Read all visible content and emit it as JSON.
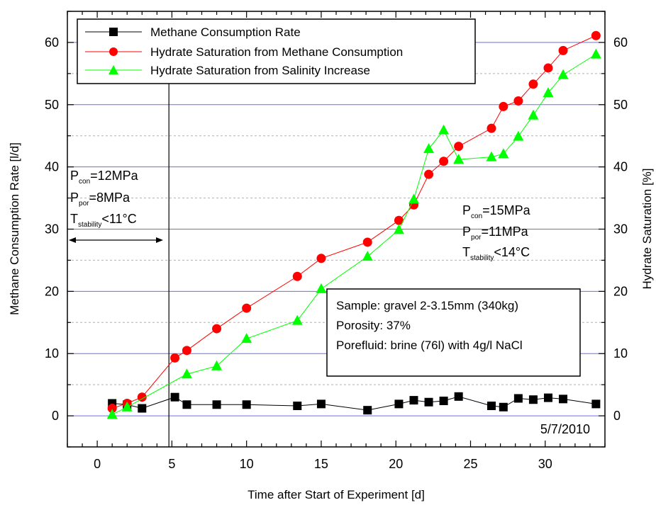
{
  "chart_data": {
    "type": "line",
    "xlabel": "Time after Start of Experiment [d]",
    "ylabel": "Methane Consumption Rate [l/d]",
    "y2label": "Hydrate Saturation [%]",
    "xlim": [
      -2,
      34
    ],
    "ylim": [
      -5,
      65
    ],
    "y2lim": [
      -5,
      65
    ],
    "x_ticks": [
      0,
      5,
      10,
      15,
      20,
      25,
      30
    ],
    "y_ticks": [
      0,
      10,
      20,
      30,
      40,
      50,
      60
    ],
    "y2_ticks": [
      0,
      10,
      20,
      30,
      40,
      50,
      60
    ],
    "grid": "horizontal",
    "legend_position": "top-left",
    "series": [
      {
        "name": "Methane Consumption Rate",
        "axis": "left",
        "color": "#000000",
        "marker": "square",
        "x": [
          1.0,
          2.0,
          3.0,
          5.2,
          6.0,
          8.0,
          10.0,
          13.4,
          15.0,
          18.1,
          20.2,
          21.2,
          22.2,
          23.2,
          24.2,
          26.4,
          27.2,
          28.2,
          29.2,
          30.2,
          31.2,
          33.4
        ],
        "values": [
          2.0,
          1.8,
          1.2,
          3.0,
          1.8,
          1.8,
          1.8,
          1.6,
          1.9,
          0.9,
          1.9,
          2.5,
          2.2,
          2.4,
          3.1,
          1.6,
          1.4,
          2.8,
          2.6,
          2.9,
          2.7,
          1.9
        ]
      },
      {
        "name": "Hydrate Saturation from Methane Consumption",
        "axis": "right",
        "color": "#ff0000",
        "marker": "circle",
        "x": [
          1.0,
          2.0,
          3.0,
          5.2,
          6.0,
          8.0,
          10.0,
          13.4,
          15.0,
          18.1,
          20.2,
          21.2,
          22.2,
          23.2,
          24.2,
          26.4,
          27.2,
          28.2,
          29.2,
          30.2,
          31.2,
          33.4
        ],
        "values": [
          1.2,
          2.0,
          3.0,
          9.3,
          10.5,
          14.0,
          17.3,
          22.4,
          25.3,
          27.9,
          31.4,
          33.9,
          38.8,
          40.9,
          43.3,
          46.2,
          49.7,
          50.6,
          53.3,
          55.9,
          58.7,
          61.1
        ]
      },
      {
        "name": "Hydrate Saturation from Salinity Increase",
        "axis": "right",
        "color": "#00ff00",
        "marker": "triangle",
        "x": [
          1.0,
          2.0,
          6.0,
          8.0,
          10.0,
          13.4,
          15.0,
          18.1,
          20.2,
          21.2,
          22.2,
          23.2,
          24.2,
          26.4,
          27.2,
          28.2,
          29.2,
          30.2,
          31.2,
          33.4
        ],
        "values": [
          0.2,
          1.4,
          6.7,
          8.0,
          12.4,
          15.3,
          20.4,
          25.6,
          29.9,
          34.8,
          42.9,
          45.9,
          41.2,
          41.6,
          42.1,
          44.9,
          48.3,
          51.9,
          54.8,
          58.1
        ]
      }
    ],
    "vertical_line_x": 4.8
  },
  "annotations": {
    "left_block": {
      "p_con_main": "P",
      "p_con_sub": "con",
      "p_con_value": "=12MPa",
      "p_por_main": "P",
      "p_por_sub": "por",
      "p_por_value": "=8MPa",
      "t_main": "T",
      "t_sub": "stability",
      "t_value": "<11°C"
    },
    "right_block": {
      "p_con_main": "P",
      "p_con_sub": "con",
      "p_con_value": "=15MPa",
      "p_por_main": "P",
      "p_por_sub": "por",
      "p_por_value": "=11MPa",
      "t_main": "T",
      "t_sub": "stability",
      "t_value": "<14°C"
    },
    "sample_box": {
      "line1": "Sample: gravel 2-3.15mm (340kg)",
      "line2": "Porosity: 37%",
      "line3": "Porefluid: brine (76l) with 4g/l NaCl"
    },
    "date": "5/7/2010"
  }
}
